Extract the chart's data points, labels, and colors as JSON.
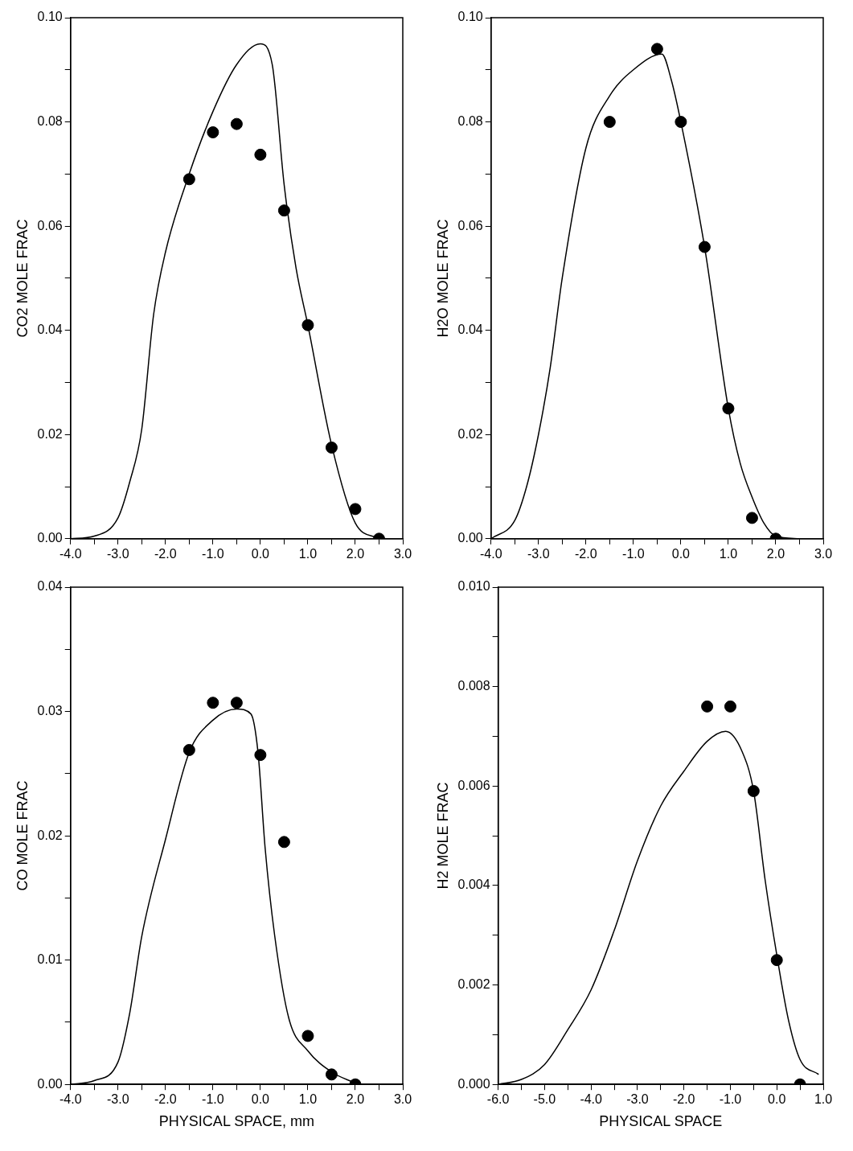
{
  "chart_data": [
    {
      "type": "scatter",
      "ylabel": "CO2 MOLE FRAC",
      "xlim": [
        -4,
        3
      ],
      "ylim": [
        0,
        0.1
      ],
      "xticks": [
        {
          "value": -4,
          "label": "-4.0"
        },
        {
          "value": -3.5,
          "label": null
        },
        {
          "value": -3,
          "label": "-3.0"
        },
        {
          "value": -2.5,
          "label": null
        },
        {
          "value": -2,
          "label": "-2.0"
        },
        {
          "value": -1.5,
          "label": null
        },
        {
          "value": -1,
          "label": "-1.0"
        },
        {
          "value": -0.5,
          "label": null
        },
        {
          "value": 0,
          "label": "0.0"
        },
        {
          "value": 0.5,
          "label": null
        },
        {
          "value": 1,
          "label": "1.0"
        },
        {
          "value": 1.5,
          "label": null
        },
        {
          "value": 2,
          "label": "2.0"
        },
        {
          "value": 2.5,
          "label": null
        },
        {
          "value": 3,
          "label": "3.0"
        }
      ],
      "yticks": [
        {
          "value": 0,
          "label": "0.00"
        },
        {
          "value": 0.01,
          "label": null
        },
        {
          "value": 0.02,
          "label": "0.02"
        },
        {
          "value": 0.03,
          "label": null
        },
        {
          "value": 0.04,
          "label": "0.04"
        },
        {
          "value": 0.05,
          "label": null
        },
        {
          "value": 0.06,
          "label": "0.06"
        },
        {
          "value": 0.07,
          "label": null
        },
        {
          "value": 0.08,
          "label": "0.08"
        },
        {
          "value": 0.09,
          "label": null
        },
        {
          "value": 0.1,
          "label": "0.10"
        }
      ],
      "series": [
        {
          "marker": "circle",
          "color": "#000000",
          "x": [
            -1.5,
            -1,
            -0.5,
            0,
            0.5,
            1,
            1.5,
            2,
            2.5
          ],
          "values": [
            0.069,
            0.078,
            0.0796,
            0.0737,
            0.063,
            0.041,
            0.0175,
            0.0057,
            0
          ]
        },
        {
          "type": "line",
          "marker": "none",
          "color": "#000000",
          "x": [
            -4,
            -3.5,
            -3,
            -2.75,
            -2.5,
            -2.25,
            -2,
            -1.5,
            -1,
            -0.5,
            0,
            0.25,
            0.5,
            0.75,
            1,
            1.5,
            2,
            2.5
          ],
          "values": [
            0,
            0.0005,
            0.004,
            0.011,
            0.021,
            0.043,
            0.055,
            0.07,
            0.082,
            0.091,
            0.095,
            0.091,
            0.068,
            0.052,
            0.041,
            0.018,
            0.003,
            0
          ]
        }
      ]
    },
    {
      "type": "scatter",
      "ylabel": "H2O MOLE FRAC",
      "xlim": [
        -4,
        3
      ],
      "ylim": [
        0,
        0.1
      ],
      "xticks": [
        {
          "value": -4,
          "label": "-4.0"
        },
        {
          "value": -3.5,
          "label": null
        },
        {
          "value": -3,
          "label": "-3.0"
        },
        {
          "value": -2.5,
          "label": null
        },
        {
          "value": -2,
          "label": "-2.0"
        },
        {
          "value": -1.5,
          "label": null
        },
        {
          "value": -1,
          "label": "-1.0"
        },
        {
          "value": -0.5,
          "label": null
        },
        {
          "value": 0,
          "label": "0.0"
        },
        {
          "value": 0.5,
          "label": null
        },
        {
          "value": 1,
          "label": "1.0"
        },
        {
          "value": 1.5,
          "label": null
        },
        {
          "value": 2,
          "label": "2.0"
        },
        {
          "value": 2.5,
          "label": null
        },
        {
          "value": 3,
          "label": "3.0"
        }
      ],
      "yticks": [
        {
          "value": 0,
          "label": "0.00"
        },
        {
          "value": 0.01,
          "label": null
        },
        {
          "value": 0.02,
          "label": "0.02"
        },
        {
          "value": 0.03,
          "label": null
        },
        {
          "value": 0.04,
          "label": "0.04"
        },
        {
          "value": 0.05,
          "label": null
        },
        {
          "value": 0.06,
          "label": "0.06"
        },
        {
          "value": 0.07,
          "label": null
        },
        {
          "value": 0.08,
          "label": "0.08"
        },
        {
          "value": 0.09,
          "label": null
        },
        {
          "value": 0.1,
          "label": "0.10"
        }
      ],
      "series": [
        {
          "marker": "circle",
          "color": "#000000",
          "x": [
            -1.5,
            -0.5,
            0,
            0.5,
            1,
            1.5,
            2
          ],
          "values": [
            0.08,
            0.094,
            0.08,
            0.056,
            0.025,
            0.004,
            0
          ]
        },
        {
          "type": "line",
          "marker": "none",
          "color": "#000000",
          "x": [
            -4,
            -3.5,
            -3.25,
            -3,
            -2.75,
            -2.5,
            -2,
            -1.5,
            -1,
            -0.4,
            -0.2,
            0,
            0.5,
            1,
            1.25,
            1.5,
            1.75,
            2,
            2.5
          ],
          "values": [
            0,
            0.0035,
            0.01,
            0.02,
            0.033,
            0.05,
            0.075,
            0.085,
            0.09,
            0.093,
            0.088,
            0.08,
            0.056,
            0.025,
            0.0145,
            0.008,
            0.003,
            0.0005,
            0
          ]
        }
      ]
    },
    {
      "type": "scatter",
      "xlabel": "PHYSICAL SPACE, mm",
      "ylabel": "CO MOLE FRAC",
      "xlim": [
        -4,
        3
      ],
      "ylim": [
        0,
        0.04
      ],
      "xticks": [
        {
          "value": -4,
          "label": "-4.0"
        },
        {
          "value": -3.5,
          "label": null
        },
        {
          "value": -3,
          "label": "-3.0"
        },
        {
          "value": -2.5,
          "label": null
        },
        {
          "value": -2,
          "label": "-2.0"
        },
        {
          "value": -1.5,
          "label": null
        },
        {
          "value": -1,
          "label": "-1.0"
        },
        {
          "value": -0.5,
          "label": null
        },
        {
          "value": 0,
          "label": "0.0"
        },
        {
          "value": 0.5,
          "label": null
        },
        {
          "value": 1,
          "label": "1.0"
        },
        {
          "value": 1.5,
          "label": null
        },
        {
          "value": 2,
          "label": "2.0"
        },
        {
          "value": 2.5,
          "label": null
        },
        {
          "value": 3,
          "label": "3.0"
        }
      ],
      "yticks": [
        {
          "value": 0,
          "label": "0.00"
        },
        {
          "value": 0.005,
          "label": null
        },
        {
          "value": 0.01,
          "label": "0.01"
        },
        {
          "value": 0.015,
          "label": null
        },
        {
          "value": 0.02,
          "label": "0.02"
        },
        {
          "value": 0.025,
          "label": null
        },
        {
          "value": 0.03,
          "label": "0.03"
        },
        {
          "value": 0.035,
          "label": null
        },
        {
          "value": 0.04,
          "label": "0.04"
        }
      ],
      "series": [
        {
          "marker": "circle",
          "color": "#000000",
          "x": [
            -1.5,
            -1,
            -0.5,
            0,
            0.5,
            1,
            1.5,
            2
          ],
          "values": [
            0.0269,
            0.0307,
            0.0307,
            0.0265,
            0.0195,
            0.0039,
            0.0008,
            0
          ]
        },
        {
          "type": "line",
          "marker": "none",
          "color": "#000000",
          "x": [
            -4,
            -3.5,
            -3,
            -2.75,
            -2.5,
            -2,
            -1.5,
            -1,
            -0.5,
            -0.2,
            -0.05,
            0.1,
            0.3,
            0.6,
            1,
            1.5,
            2
          ],
          "values": [
            0,
            0.0003,
            0.0018,
            0.0058,
            0.0119,
            0.0197,
            0.0267,
            0.0293,
            0.0302,
            0.0298,
            0.0267,
            0.019,
            0.012,
            0.0053,
            0.0027,
            0.001,
            0.0001
          ]
        }
      ]
    },
    {
      "type": "scatter",
      "xlabel": "PHYSICAL SPACE",
      "ylabel": "H2 MOLE FRAC",
      "xlim": [
        -6,
        1
      ],
      "ylim": [
        0,
        0.01
      ],
      "xticks": [
        {
          "value": -6,
          "label": "-6.0"
        },
        {
          "value": -5.5,
          "label": null
        },
        {
          "value": -5,
          "label": "-5.0"
        },
        {
          "value": -4.5,
          "label": null
        },
        {
          "value": -4,
          "label": "-4.0"
        },
        {
          "value": -3.5,
          "label": null
        },
        {
          "value": -3,
          "label": "-3.0"
        },
        {
          "value": -2.5,
          "label": null
        },
        {
          "value": -2,
          "label": "-2.0"
        },
        {
          "value": -1.5,
          "label": null
        },
        {
          "value": -1,
          "label": "-1.0"
        },
        {
          "value": -0.5,
          "label": null
        },
        {
          "value": 0,
          "label": "0.0"
        },
        {
          "value": 0.5,
          "label": null
        },
        {
          "value": 1,
          "label": "1.0"
        }
      ],
      "yticks": [
        {
          "value": 0,
          "label": "0.000"
        },
        {
          "value": 0.001,
          "label": null
        },
        {
          "value": 0.002,
          "label": "0.002"
        },
        {
          "value": 0.003,
          "label": null
        },
        {
          "value": 0.004,
          "label": "0.004"
        },
        {
          "value": 0.005,
          "label": null
        },
        {
          "value": 0.006,
          "label": "0.006"
        },
        {
          "value": 0.007,
          "label": null
        },
        {
          "value": 0.008,
          "label": "0.008"
        },
        {
          "value": 0.009,
          "label": null
        },
        {
          "value": 0.01,
          "label": "0.010"
        }
      ],
      "series": [
        {
          "marker": "circle",
          "color": "#000000",
          "x": [
            -1.5,
            -1,
            -0.5,
            0,
            0.5
          ],
          "values": [
            0.0076,
            0.0076,
            0.0059,
            0.0025,
            0
          ]
        },
        {
          "type": "line",
          "marker": "none",
          "color": "#000000",
          "x": [
            -6,
            -5.5,
            -5,
            -4.5,
            -4,
            -3.5,
            -3,
            -2.5,
            -2,
            -1.5,
            -1.1,
            -0.75,
            -0.5,
            -0.25,
            0,
            0.25,
            0.5,
            0.9
          ],
          "values": [
            0,
            0.0001,
            0.0004,
            0.0011,
            0.0019,
            0.0031,
            0.0045,
            0.0056,
            0.0063,
            0.0069,
            0.0071,
            0.0067,
            0.0059,
            0.0041,
            0.0026,
            0.0013,
            0.0005,
            0.0002
          ]
        }
      ]
    }
  ]
}
